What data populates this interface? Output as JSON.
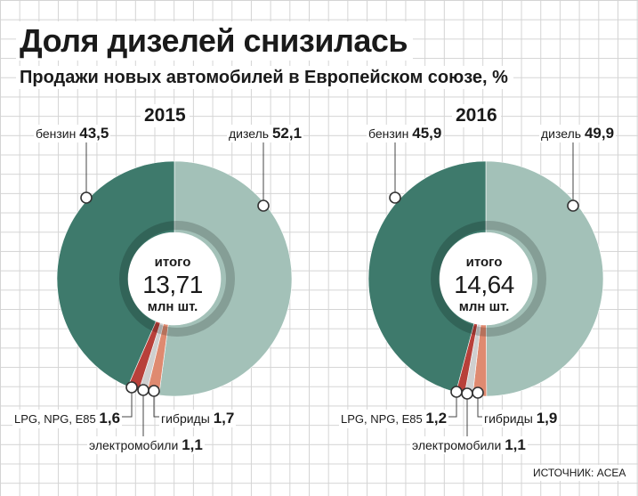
{
  "title": "Доля дизелей снизилась",
  "subtitle": "Продажи новых автомобилей в Европейском союзе, %",
  "source": "ИСТОЧНИК: ACEA",
  "colors": {
    "petrol": "#3e7a6c",
    "diesel": "#a3c1b8",
    "lpg": "#b8403a",
    "electric": "#cfcfcf",
    "hybrid": "#df8a70",
    "leader": "#444444"
  },
  "chart_data": [
    {
      "type": "pie",
      "year": "2015",
      "total_top": "итого",
      "total_value": "13,71",
      "total_unit": "млн шт.",
      "slices": [
        {
          "key": "diesel",
          "label": "дизель",
          "value": 52.1,
          "value_label": "52,1"
        },
        {
          "key": "hybrid",
          "label": "гибриды",
          "value": 1.7,
          "value_label": "1,7"
        },
        {
          "key": "electric",
          "label": "электромобили",
          "value": 1.1,
          "value_label": "1,1"
        },
        {
          "key": "lpg",
          "label": "LPG, NPG, E85",
          "value": 1.6,
          "value_label": "1,6"
        },
        {
          "key": "petrol",
          "label": "бензин",
          "value": 43.5,
          "value_label": "43,5"
        }
      ]
    },
    {
      "type": "pie",
      "year": "2016",
      "total_top": "итого",
      "total_value": "14,64",
      "total_unit": "млн шт.",
      "slices": [
        {
          "key": "diesel",
          "label": "дизель",
          "value": 49.9,
          "value_label": "49,9"
        },
        {
          "key": "hybrid",
          "label": "гибриды",
          "value": 1.9,
          "value_label": "1,9"
        },
        {
          "key": "electric",
          "label": "электромобили",
          "value": 1.1,
          "value_label": "1,1"
        },
        {
          "key": "lpg",
          "label": "LPG, NPG, E85",
          "value": 1.2,
          "value_label": "1,2"
        },
        {
          "key": "petrol",
          "label": "бензин",
          "value": 45.9,
          "value_label": "45,9"
        }
      ]
    }
  ]
}
